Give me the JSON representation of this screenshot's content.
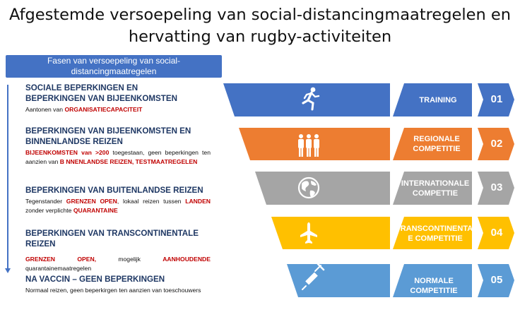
{
  "title": {
    "line1": "Afgestemde versoepeling van social-distancingmaatregelen en",
    "line2": "hervatting van rugby-activiteiten"
  },
  "phases_header": {
    "line1": "Fasen van versoepeling van social-",
    "line2": "distancingmaatregelen"
  },
  "phases": [
    {
      "heading_line1": "SOCIALE BEPERKINGEN EN",
      "heading_line2": "BEPERKINGEN VAN BIJEENKOMSTEN",
      "text_a": "Aantonen van ",
      "text_red_a": "ORGANISATIECAPACITEIT"
    },
    {
      "heading_line1": "BEPERKINGEN VAN BIJEENKOMSTEN EN",
      "heading_line2": "BINNENLANDSE REIZEN",
      "text_red_a": "BIJEENKOMSTEN van >200",
      "text_a": " toegestaan, geen beperkingen ten aanzien van ",
      "text_red_b": "B NNENLANDSE REIZEN, TESTMAATREGELEN"
    },
    {
      "heading_line1": "BEPERKINGEN VAN BUITENLANDSE REIZEN",
      "text_a": "Tegenstander ",
      "text_red_a": "GRENZEN OPEN",
      "text_b": ", lokaal reizen tussen ",
      "text_red_b": "LANDEN",
      "text_c": " zonder verplichte ",
      "text_red_c": "QUARANTAINE"
    },
    {
      "heading_line1": "BEPERKINGEN VAN TRANSCONTINENTALE REIZEN",
      "text_red_a": "GRENZEN OPEN,",
      "text_a": " mogelijk ",
      "text_red_b": "AANHOUDENDE",
      "text_b": " quarantainemaatregelen"
    },
    {
      "heading_line1": "NA VACCIN – GEEN BEPERKINGEN",
      "text_a": "Normaal reizen, geen beperkirgen ten aanzien van toeschouwers"
    }
  ],
  "competitions": [
    {
      "label_line1": "TRAINING",
      "label_line2": "",
      "number": "01",
      "icon": "runner-icon",
      "color": "#4472c4"
    },
    {
      "label_line1": "REGIONALE",
      "label_line2": "COMPETITIE",
      "number": "02",
      "icon": "people-group-icon",
      "color": "#ed7d31"
    },
    {
      "label_line1": "INTERNATIONALE",
      "label_line2": "COMPETTIE",
      "number": "03",
      "icon": "globe-icon",
      "color": "#a5a5a5"
    },
    {
      "label_line1": "TRANSCONTINENTAL",
      "label_line2": "E COMPETITIE",
      "number": "04",
      "icon": "airplane-icon",
      "color": "#ffc000"
    },
    {
      "label_line1": "NORMALE COMPETITIE",
      "label_line2": "",
      "number": "05",
      "icon": "syringe-icon",
      "color": "#5b9bd5"
    }
  ]
}
